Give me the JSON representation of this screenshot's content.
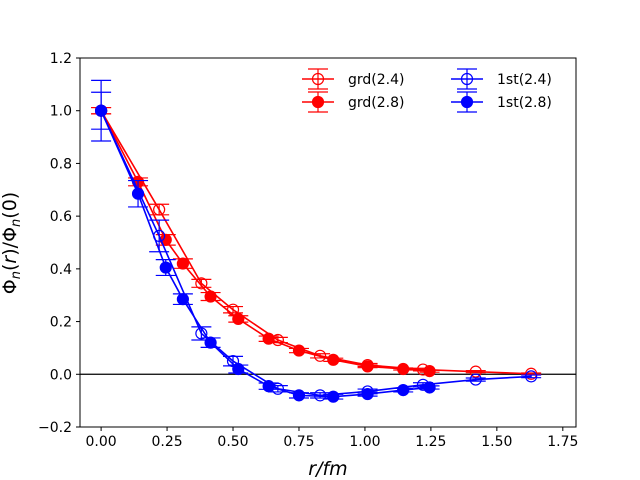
{
  "chart_data": {
    "type": "line",
    "title": "",
    "xlabel": "r/fm",
    "ylabel": "Φn(r)/Φn(0)",
    "xlim": [
      -0.08,
      1.8
    ],
    "ylim": [
      -0.2,
      1.2
    ],
    "x_ticks": [
      "0.00",
      "0.25",
      "0.50",
      "0.75",
      "1.00",
      "1.25",
      "1.50",
      "1.75"
    ],
    "y_ticks": [
      "−0.2",
      "0.0",
      "0.2",
      "0.4",
      "0.6",
      "0.8",
      "1.0",
      "1.2"
    ],
    "x_tick_values": [
      0,
      0.25,
      0.5,
      0.75,
      1.0,
      1.25,
      1.5,
      1.75
    ],
    "y_tick_values": [
      -0.2,
      0,
      0.2,
      0.4,
      0.6,
      0.8,
      1.0,
      1.2
    ],
    "reference_line_y": 0,
    "legend_position": "top-right",
    "series": [
      {
        "name": "grd(2.4)",
        "color": "#ff0000",
        "marker": "open-circle",
        "x": [
          0.0,
          0.22,
          0.38,
          0.5,
          0.67,
          0.83,
          1.01,
          1.22,
          1.42,
          1.63
        ],
        "y": [
          1.0,
          0.625,
          0.345,
          0.245,
          0.13,
          0.07,
          0.035,
          0.018,
          0.01,
          0.002
        ],
        "err": [
          0.012,
          0.02,
          0.015,
          0.012,
          0.01,
          0.008,
          0.006,
          0.005,
          0.004,
          0.003
        ]
      },
      {
        "name": "grd(2.8)",
        "color": "#ff0000",
        "marker": "filled-circle",
        "x": [
          0.0,
          0.14,
          0.245,
          0.31,
          0.415,
          0.52,
          0.635,
          0.75,
          0.88,
          1.01,
          1.145,
          1.245
        ],
        "y": [
          1.0,
          0.73,
          0.51,
          0.42,
          0.295,
          0.21,
          0.135,
          0.09,
          0.055,
          0.03,
          0.02,
          0.012
        ],
        "err": [
          0.012,
          0.015,
          0.02,
          0.018,
          0.015,
          0.012,
          0.01,
          0.008,
          0.006,
          0.005,
          0.004,
          0.004
        ]
      },
      {
        "name": "1st(2.4)",
        "color": "#0000ff",
        "marker": "open-circle",
        "x": [
          0.0,
          0.22,
          0.38,
          0.5,
          0.67,
          0.83,
          1.01,
          1.22,
          1.42,
          1.63
        ],
        "y": [
          1.0,
          0.525,
          0.155,
          0.05,
          -0.055,
          -0.08,
          -0.065,
          -0.04,
          -0.02,
          -0.008
        ],
        "err": [
          0.115,
          0.06,
          0.025,
          0.018,
          0.012,
          0.01,
          0.009,
          0.008,
          0.006,
          0.005
        ]
      },
      {
        "name": "1st(2.8)",
        "color": "#0000ff",
        "marker": "filled-circle",
        "x": [
          0.0,
          0.14,
          0.245,
          0.31,
          0.415,
          0.52,
          0.635,
          0.75,
          0.88,
          1.01,
          1.145,
          1.245
        ],
        "y": [
          1.0,
          0.685,
          0.405,
          0.285,
          0.12,
          0.02,
          -0.045,
          -0.08,
          -0.085,
          -0.075,
          -0.06,
          -0.05
        ],
        "err": [
          0.07,
          0.05,
          0.03,
          0.02,
          0.018,
          0.015,
          0.012,
          0.01,
          0.009,
          0.008,
          0.007,
          0.006
        ]
      }
    ]
  }
}
